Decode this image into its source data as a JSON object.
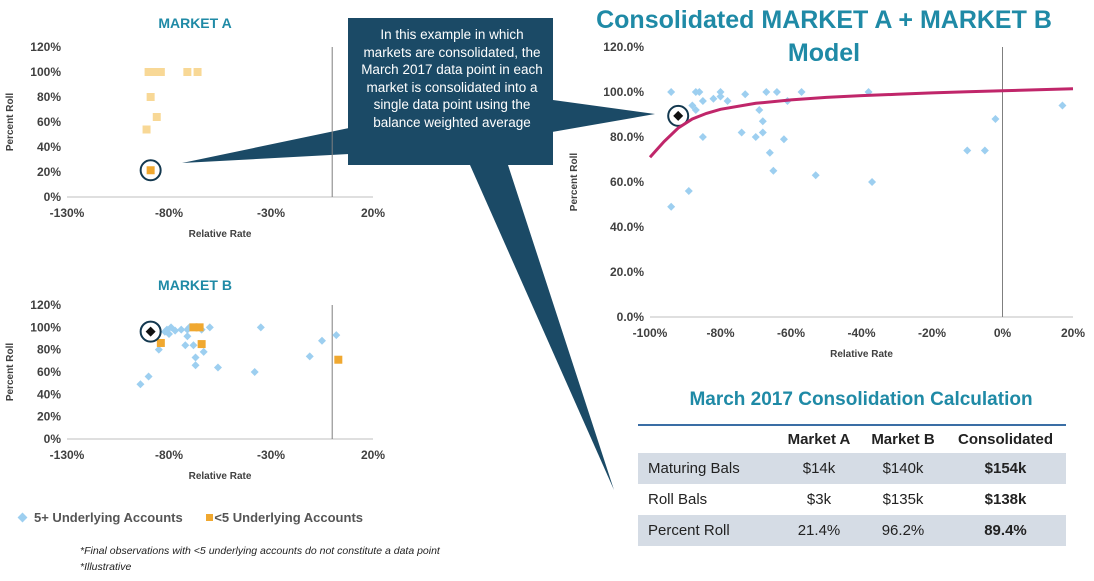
{
  "callout": {
    "text": "In this example in which markets are consolidated, the March 2017 data point in each market is consolidated into a single data point using the balance weighted average"
  },
  "consolidated_title": "Consolidated MARKET A + MARKET B Model",
  "calc": {
    "title": "March 2017 Consolidation Calculation",
    "headers": [
      "",
      "Market A",
      "Market B",
      "Consolidated"
    ],
    "rows": [
      {
        "label": "Maturing Bals",
        "a": "$14k",
        "b": "$140k",
        "c": "$154k"
      },
      {
        "label": "Roll Bals",
        "a": "$3k",
        "b": "$135k",
        "c": "$138k"
      },
      {
        "label": "Percent Roll",
        "a": "21.4%",
        "b": "96.2%",
        "c": "89.4%"
      }
    ]
  },
  "legend": {
    "item1": "5+ Underlying Accounts",
    "item2": "<5 Underlying Accounts"
  },
  "footnotes": [
    "*Final observations with <5 underlying accounts do not constitute a data point",
    "*Illustrative"
  ],
  "colors": {
    "blue": "#9dcff0",
    "orange": "#f0a830",
    "light_orange": "#f8d896",
    "curve": "#c0266a",
    "callout": "#1b4a66",
    "title": "#1f8aa6"
  },
  "chart_data": [
    {
      "type": "scatter",
      "title": "MARKET A",
      "xlabel": "Relative Rate",
      "ylabel": "Percent Roll",
      "xlim": [
        -130,
        20
      ],
      "ylim": [
        0,
        120
      ],
      "xticks": [
        "-130%",
        "-80%",
        "-30%",
        "20%"
      ],
      "yticks": [
        "0%",
        "20%",
        "40%",
        "60%",
        "80%",
        "100%",
        "120%"
      ],
      "vline_x": 0,
      "series": [
        {
          "style": "faded",
          "points": [
            [
              -90,
              100
            ],
            [
              -88,
              100
            ],
            [
              -86,
              100
            ],
            [
              -84,
              100
            ],
            [
              -71,
              100
            ],
            [
              -66,
              100
            ],
            [
              -89,
              80
            ],
            [
              -86,
              64
            ],
            [
              -91,
              54
            ]
          ]
        },
        {
          "style": "highlight",
          "points": [
            [
              -89,
              21.4
            ]
          ]
        }
      ]
    },
    {
      "type": "scatter",
      "title": "MARKET B",
      "xlabel": "Relative Rate",
      "ylabel": "Percent Roll",
      "xlim": [
        -130,
        20
      ],
      "ylim": [
        0,
        120
      ],
      "xticks": [
        "-130%",
        "-80%",
        "-30%",
        "20%"
      ],
      "yticks": [
        "0%",
        "20%",
        "40%",
        "60%",
        "80%",
        "100%",
        "120%"
      ],
      "vline_x": 0,
      "series": [
        {
          "name": "5+ Underlying Accounts",
          "points": [
            [
              -94,
              49
            ],
            [
              -90,
              56
            ],
            [
              -85,
              80
            ],
            [
              -82,
              96
            ],
            [
              -81,
              98
            ],
            [
              -80,
              94
            ],
            [
              -79,
              100
            ],
            [
              -77,
              97
            ],
            [
              -74,
              98
            ],
            [
              -72,
              84
            ],
            [
              -71,
              92
            ],
            [
              -71,
              98
            ],
            [
              -70,
              100
            ],
            [
              -68,
              84
            ],
            [
              -67,
              66
            ],
            [
              -67,
              73
            ],
            [
              -64,
              98
            ],
            [
              -63,
              78
            ],
            [
              -60,
              100
            ],
            [
              -56,
              64
            ],
            [
              -38,
              60
            ],
            [
              -35,
              100
            ],
            [
              -11,
              74
            ],
            [
              -5,
              88
            ],
            [
              2,
              93
            ]
          ]
        },
        {
          "name": "<5 Underlying Accounts",
          "points": [
            [
              -84,
              86
            ],
            [
              -68,
              100
            ],
            [
              -65,
              100
            ],
            [
              -64,
              85
            ],
            [
              3,
              71
            ]
          ]
        },
        {
          "style": "highlight",
          "points": [
            [
              -89,
              96.2
            ]
          ]
        }
      ]
    },
    {
      "type": "scatter",
      "title": "Consolidated MARKET A + MARKET B Model",
      "xlabel": "Relative Rate",
      "ylabel": "Percent Roll",
      "xlim": [
        -100,
        20
      ],
      "ylim": [
        0,
        120
      ],
      "xticks": [
        "-100%",
        "-80%",
        "-60%",
        "-40%",
        "-20%",
        "0%",
        "20%"
      ],
      "yticks": [
        "0.0%",
        "20.0%",
        "40.0%",
        "60.0%",
        "80.0%",
        "100.0%",
        "120.0%"
      ],
      "vline_x": 0,
      "series": [
        {
          "style": "points",
          "points": [
            [
              -94,
              100
            ],
            [
              -89,
              56
            ],
            [
              -94,
              49
            ],
            [
              -86,
              100
            ],
            [
              -87,
              100
            ],
            [
              -88,
              94
            ],
            [
              -87,
              92
            ],
            [
              -85,
              80
            ],
            [
              -85,
              96
            ],
            [
              -82,
              97
            ],
            [
              -80,
              98
            ],
            [
              -80,
              100
            ],
            [
              -78,
              96
            ],
            [
              -74,
              82
            ],
            [
              -73,
              99
            ],
            [
              -70,
              80
            ],
            [
              -69,
              92
            ],
            [
              -68,
              87
            ],
            [
              -68,
              82
            ],
            [
              -67,
              100
            ],
            [
              -66,
              73
            ],
            [
              -65,
              65
            ],
            [
              -64,
              100
            ],
            [
              -62,
              79
            ],
            [
              -61,
              96
            ],
            [
              -57,
              100
            ],
            [
              -53,
              63
            ],
            [
              -38,
              100
            ],
            [
              -37,
              60
            ],
            [
              -10,
              74
            ],
            [
              -5,
              74
            ],
            [
              -2,
              88
            ],
            [
              17,
              94
            ]
          ]
        },
        {
          "style": "highlight",
          "points": [
            [
              -92,
              89.4
            ]
          ]
        },
        {
          "style": "fit",
          "points": [
            [
              -100,
              71
            ],
            [
              -96,
              78
            ],
            [
              -92,
              84
            ],
            [
              -88,
              88
            ],
            [
              -84,
              90.5
            ],
            [
              -80,
              92.3
            ],
            [
              -70,
              95
            ],
            [
              -60,
              96.5
            ],
            [
              -50,
              97.6
            ],
            [
              -40,
              98.4
            ],
            [
              -30,
              99
            ],
            [
              -20,
              99.6
            ],
            [
              -10,
              100.1
            ],
            [
              0,
              100.6
            ],
            [
              10,
              101
            ],
            [
              20,
              101.4
            ]
          ]
        }
      ]
    }
  ]
}
